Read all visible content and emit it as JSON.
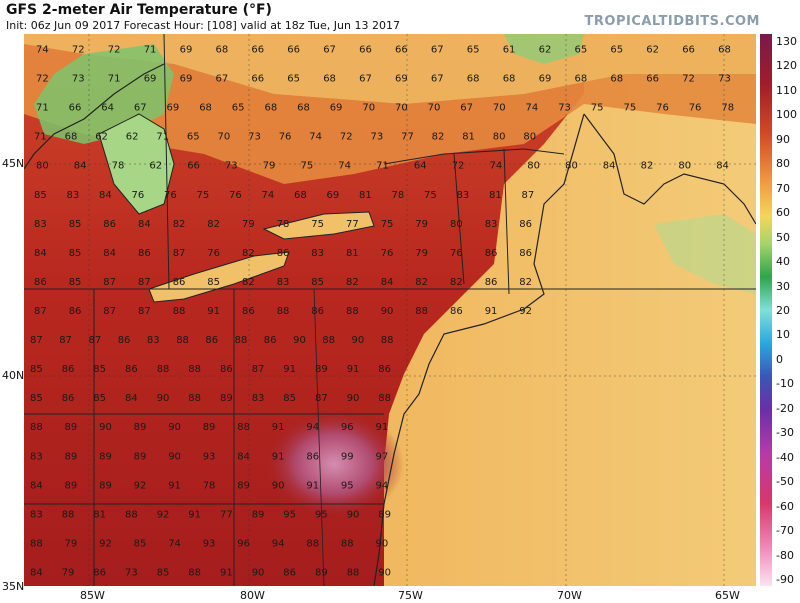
{
  "header": {
    "title": "GFS 2-meter Air Temperature (°F)",
    "subtitle": "Init: 06z Jun 09 2017   Forecast Hour: [108]   valid at 18z Tue, Jun 13 2017",
    "brand": "TROPICALTIDBITS.COM"
  },
  "map": {
    "lat_labels": [
      "45N",
      "40N",
      "35N"
    ],
    "lon_labels": [
      "85W",
      "80W",
      "75W",
      "70W",
      "65W"
    ],
    "colorbar_labels": [
      "130",
      "120",
      "110",
      "100",
      "90",
      "80",
      "70",
      "60",
      "50",
      "40",
      "30",
      "20",
      "10",
      "0",
      "-10",
      "-20",
      "-30",
      "-40",
      "-50",
      "-60",
      "-70",
      "-80",
      "-90"
    ],
    "colors": {
      "hot_extreme": "#c85c8c",
      "hot": "#a12020",
      "warm": "#c93a22",
      "mild": "#e27a3a",
      "cool": "#f0b45a",
      "ocean": "#f3c56a",
      "cold": "#6cc06a"
    },
    "values": [
      [
        "74",
        "72",
        "72",
        "71",
        "69",
        "68",
        "66",
        "66",
        "67",
        "66",
        "66",
        "67",
        "65",
        "61",
        "62",
        "65",
        "65",
        "62",
        "66",
        "68"
      ],
      [
        "72",
        "73",
        "71",
        "69",
        "69",
        "67",
        "66",
        "65",
        "68",
        "67",
        "69",
        "67",
        "68",
        "68",
        "69",
        "68",
        "68",
        "66",
        "72",
        "73"
      ],
      [
        "71",
        "66",
        "64",
        "67",
        "69",
        "68",
        "65",
        "68",
        "68",
        "69",
        "70",
        "70",
        "70",
        "67",
        "70",
        "74",
        "73",
        "75",
        "75",
        "76",
        "76",
        "78"
      ],
      [
        "71",
        "68",
        "62",
        "62",
        "71",
        "65",
        "70",
        "73",
        "76",
        "74",
        "72",
        "73",
        "77",
        "82",
        "81",
        "80",
        "80"
      ],
      [
        "80",
        "84",
        "78",
        "62",
        "66",
        "73",
        "79",
        "75",
        "74",
        "71",
        "64",
        "72",
        "74",
        "80",
        "80",
        "84",
        "82",
        "80",
        "84"
      ],
      [
        "85",
        "83",
        "84",
        "76",
        "76",
        "75",
        "76",
        "74",
        "68",
        "69",
        "81",
        "78",
        "75",
        "83",
        "81",
        "87"
      ],
      [
        "83",
        "85",
        "86",
        "84",
        "82",
        "82",
        "79",
        "78",
        "75",
        "77",
        "75",
        "79",
        "80",
        "83",
        "86"
      ],
      [
        "84",
        "85",
        "84",
        "86",
        "87",
        "76",
        "82",
        "86",
        "83",
        "81",
        "76",
        "79",
        "76",
        "86",
        "86"
      ],
      [
        "86",
        "85",
        "87",
        "87",
        "86",
        "85",
        "82",
        "83",
        "85",
        "82",
        "84",
        "82",
        "82",
        "86",
        "82"
      ],
      [
        "87",
        "86",
        "87",
        "87",
        "88",
        "91",
        "86",
        "88",
        "86",
        "88",
        "90",
        "88",
        "86",
        "91",
        "92"
      ],
      [
        "87",
        "87",
        "87",
        "86",
        "83",
        "88",
        "86",
        "88",
        "86",
        "90",
        "88",
        "90",
        "88"
      ],
      [
        "85",
        "86",
        "85",
        "86",
        "88",
        "88",
        "86",
        "87",
        "91",
        "89",
        "91",
        "86"
      ],
      [
        "85",
        "86",
        "85",
        "84",
        "90",
        "88",
        "89",
        "83",
        "85",
        "87",
        "90",
        "88"
      ],
      [
        "88",
        "89",
        "90",
        "89",
        "90",
        "89",
        "88",
        "91",
        "94",
        "96",
        "91"
      ],
      [
        "83",
        "89",
        "89",
        "89",
        "90",
        "93",
        "84",
        "91",
        "86",
        "99",
        "97"
      ],
      [
        "84",
        "89",
        "89",
        "92",
        "91",
        "78",
        "89",
        "90",
        "91",
        "95",
        "94"
      ],
      [
        "83",
        "88",
        "81",
        "88",
        "92",
        "91",
        "77",
        "89",
        "95",
        "95",
        "90",
        "89"
      ],
      [
        "88",
        "79",
        "92",
        "85",
        "74",
        "93",
        "96",
        "94",
        "88",
        "88",
        "90"
      ],
      [
        "84",
        "79",
        "86",
        "73",
        "85",
        "88",
        "91",
        "90",
        "86",
        "89",
        "88",
        "90"
      ]
    ]
  }
}
